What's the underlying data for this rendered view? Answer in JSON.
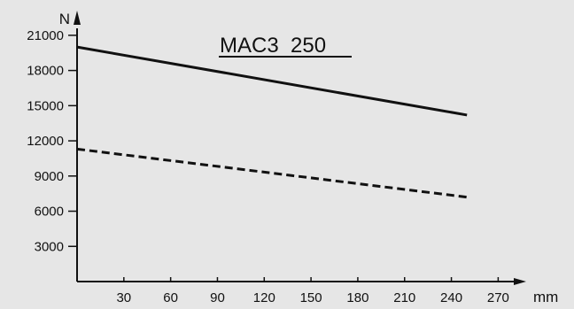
{
  "chart_data": {
    "type": "line",
    "title": "MAC3  250",
    "xlabel": "mm",
    "ylabel": "N",
    "xlim": [
      0,
      280
    ],
    "ylim": [
      0,
      22500
    ],
    "x_ticks": [
      30,
      60,
      90,
      120,
      150,
      180,
      210,
      240,
      270
    ],
    "y_ticks": [
      3000,
      6000,
      9000,
      12000,
      15000,
      18000,
      21000
    ],
    "grid": false,
    "series": [
      {
        "style": "solid",
        "color": "#111111",
        "x": [
          0,
          250
        ],
        "y": [
          20000,
          14200
        ]
      },
      {
        "style": "dashed",
        "color": "#111111",
        "x": [
          0,
          250
        ],
        "y": [
          11300,
          7200
        ]
      }
    ]
  }
}
